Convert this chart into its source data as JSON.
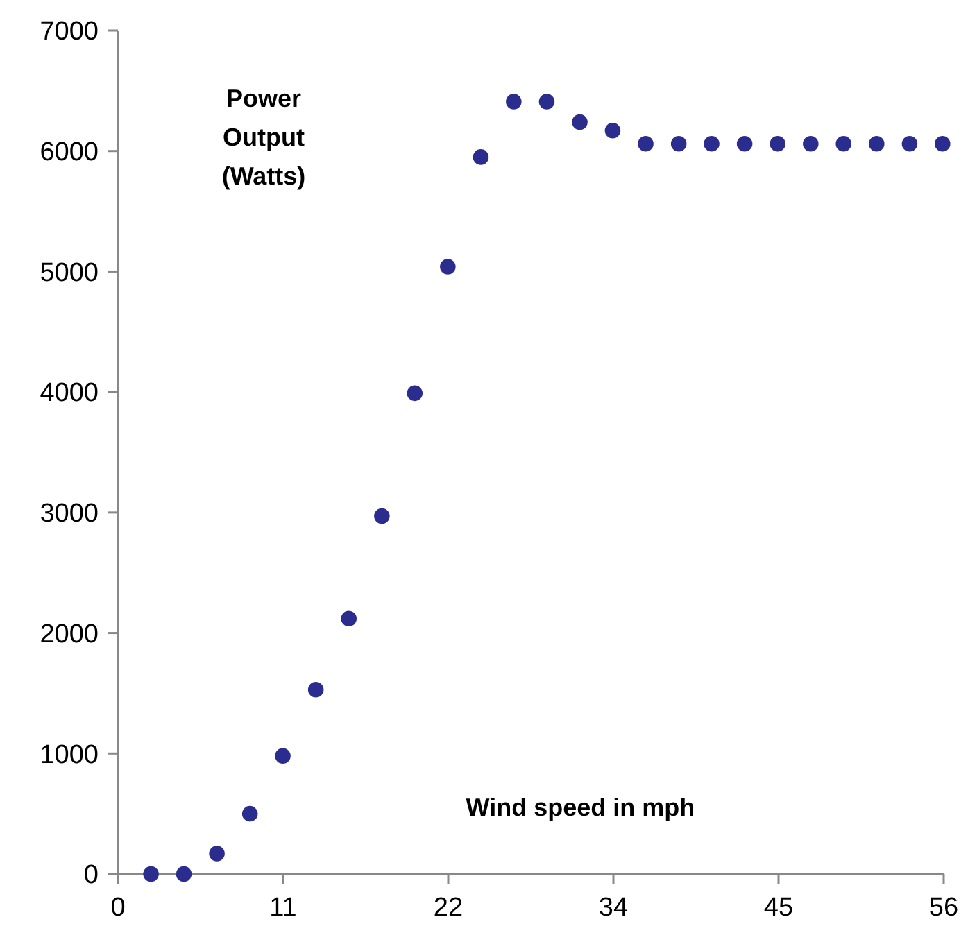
{
  "chart_data": {
    "type": "scatter",
    "xlabel": "Wind speed in mph",
    "ylabel": "Power Output (Watts)",
    "x": [
      2.24,
      4.47,
      6.71,
      8.95,
      11.18,
      13.42,
      15.66,
      17.9,
      20.13,
      22.37,
      24.61,
      26.84,
      29.08,
      31.32,
      33.55,
      35.79,
      38.03,
      40.26,
      42.5,
      44.74,
      46.98,
      49.21,
      51.45,
      53.69,
      55.92
    ],
    "series": [
      {
        "color": "#2b2d8e",
        "values": [
          0,
          0,
          170,
          500,
          980,
          1530,
          2120,
          2970,
          3990,
          5040,
          5950,
          6410,
          6410,
          6240,
          6170,
          6060,
          6060,
          6060,
          6060,
          6060,
          6060,
          6060,
          6060,
          6060,
          6060
        ]
      }
    ],
    "xlim": [
      0,
      56
    ],
    "xticks": [
      0,
      {
        "value": 11.2,
        "label": "11"
      },
      {
        "value": 22.4,
        "label": "22"
      },
      {
        "value": 33.6,
        "label": "34"
      },
      {
        "value": 44.8,
        "label": "45"
      },
      {
        "value": 56,
        "label": "56"
      }
    ],
    "ylim": [
      0,
      7000
    ],
    "yticks": [
      0,
      1000,
      2000,
      3000,
      4000,
      5000,
      6000,
      7000
    ],
    "grid": false,
    "marker": "circle"
  }
}
